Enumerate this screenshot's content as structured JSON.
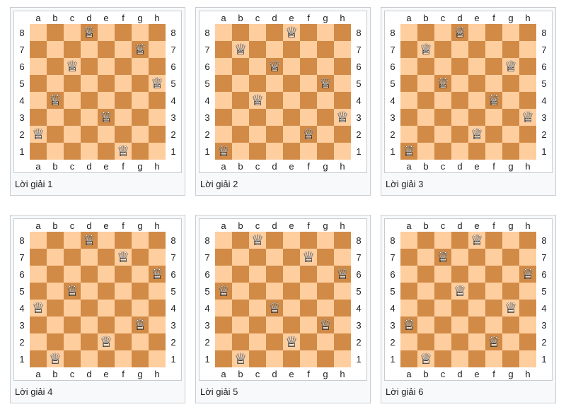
{
  "theme": {
    "light_square": "#ffce9e",
    "dark_square": "#d18b47",
    "frame_border": "#c8ccd1",
    "frame_background": "#f8f9fa",
    "board_background": "#ffffff",
    "label_color": "#202122",
    "caption_color": "#202122",
    "page_background": "#ffffff"
  },
  "files": [
    "a",
    "b",
    "c",
    "d",
    "e",
    "f",
    "g",
    "h"
  ],
  "ranks_top_to_bottom": [
    "8",
    "7",
    "6",
    "5",
    "4",
    "3",
    "2",
    "1"
  ],
  "piece": {
    "name": "white-queen",
    "outline_glyph": "♕",
    "fill_glyph": "♛"
  },
  "boards": [
    {
      "caption": "Lời giải 1",
      "queen_squares": [
        "a2",
        "b4",
        "c6",
        "d8",
        "e3",
        "f1",
        "g7",
        "h5"
      ]
    },
    {
      "caption": "Lời giải 2",
      "queen_squares": [
        "a1",
        "b7",
        "c4",
        "d6",
        "e8",
        "f2",
        "g5",
        "h3"
      ]
    },
    {
      "caption": "Lời giải 3",
      "queen_squares": [
        "a1",
        "b7",
        "c5",
        "d8",
        "e2",
        "f4",
        "g6",
        "h3"
      ]
    },
    {
      "caption": "Lời giải 4",
      "queen_squares": [
        "a4",
        "b1",
        "c5",
        "d8",
        "e2",
        "f7",
        "g3",
        "h6"
      ]
    },
    {
      "caption": "Lời giải 5",
      "queen_squares": [
        "a5",
        "b1",
        "c8",
        "d4",
        "e2",
        "f7",
        "g3",
        "h6"
      ]
    },
    {
      "caption": "Lời giải 6",
      "queen_squares": [
        "a3",
        "b1",
        "c7",
        "d5",
        "e8",
        "f2",
        "g4",
        "h6"
      ]
    }
  ]
}
